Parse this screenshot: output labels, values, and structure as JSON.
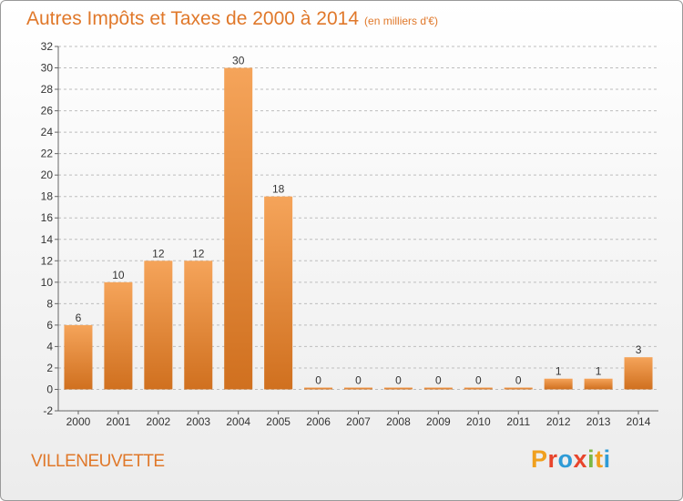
{
  "header": {
    "title": "Autres Impôts et Taxes de 2000 à 2014",
    "unit": "(en milliers d'€)"
  },
  "footer": {
    "commune": "VILLENEUVETTE",
    "logo": {
      "letters": [
        "P",
        "r",
        "o",
        "x",
        "i",
        "t",
        "i"
      ],
      "colors": [
        "#f0a01e",
        "#e8452c",
        "#2e9bd6",
        "#e8452c",
        "#7cb844",
        "#f0a01e",
        "#2e9bd6"
      ]
    }
  },
  "colors": {
    "title": "#e0782a",
    "bar_top": "#f5a45a",
    "bar_bottom": "#d0701f",
    "grid": "#bdbdbd"
  },
  "chart_data": {
    "type": "bar",
    "title": "Autres Impôts et Taxes de 2000 à 2014",
    "subtitle": "(en milliers d'€)",
    "categories": [
      "2000",
      "2001",
      "2002",
      "2003",
      "2004",
      "2005",
      "2006",
      "2007",
      "2008",
      "2009",
      "2010",
      "2011",
      "2012",
      "2013",
      "2014"
    ],
    "values": [
      6,
      10,
      12,
      12,
      30,
      18,
      0,
      0,
      0,
      0,
      0,
      0,
      1,
      1,
      3
    ],
    "ylim": [
      -2,
      32
    ],
    "yticks": [
      -2,
      0,
      2,
      4,
      6,
      8,
      10,
      12,
      14,
      16,
      18,
      20,
      22,
      24,
      26,
      28,
      30,
      32
    ],
    "grid": "horizontal dashed",
    "legend": "none"
  }
}
